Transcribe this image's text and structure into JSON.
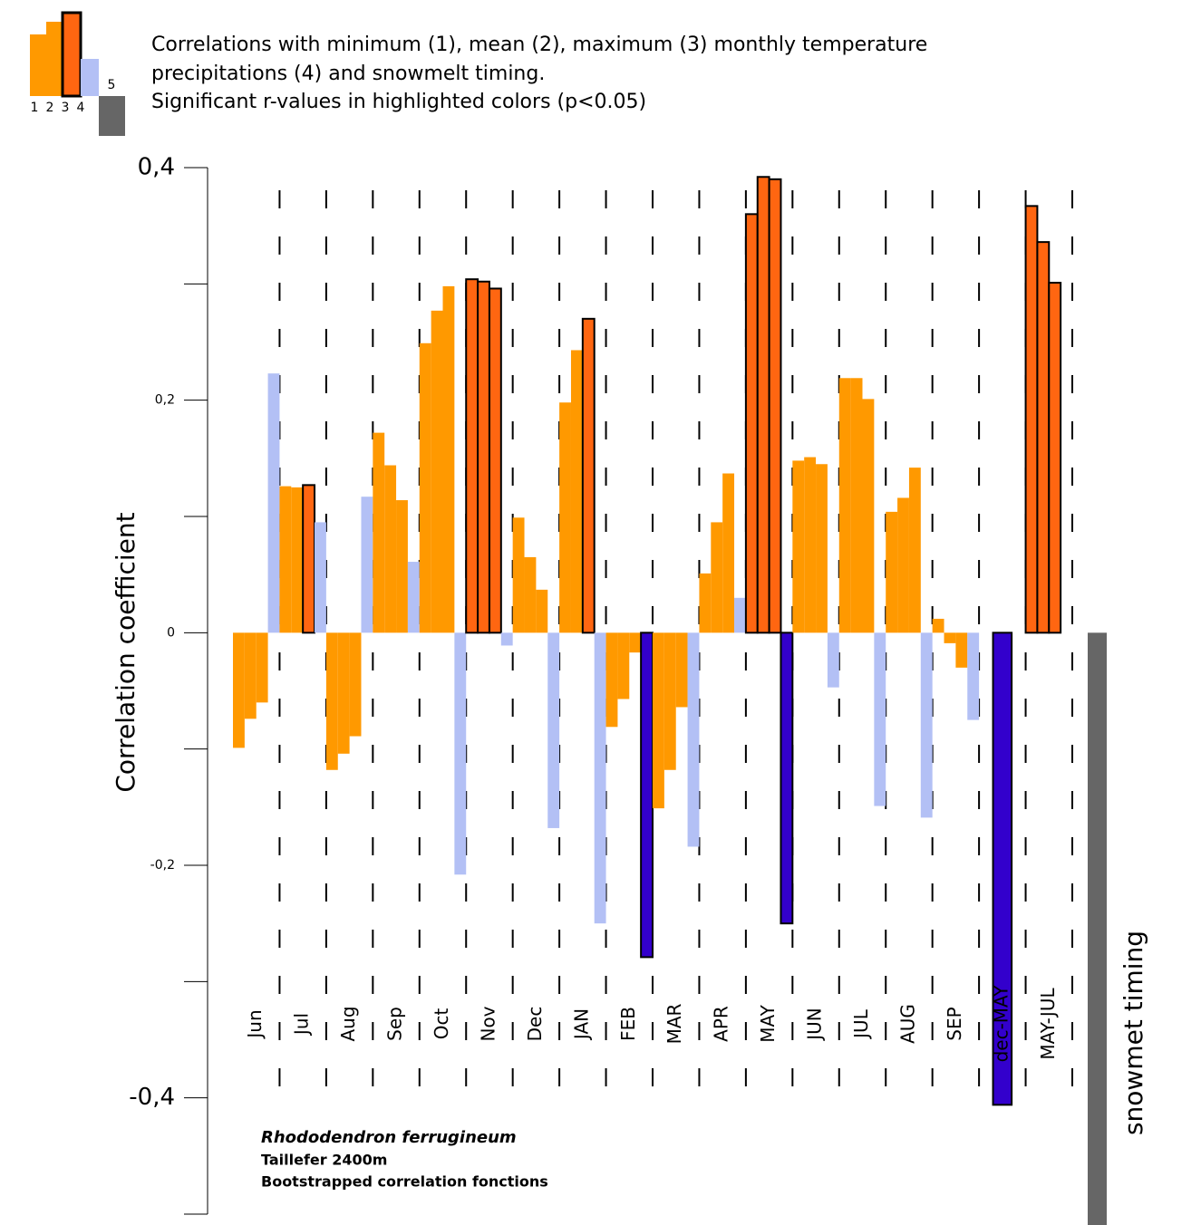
{
  "chart_data": {
    "type": "bar",
    "title_lines": [
      "Correlations with minimum (1), mean (2), maximum (3) monthly temperature",
      "precipitations (4) and snowmelt timing.",
      "Significant r-values in highlighted colors (p<0.05)"
    ],
    "y_label": "Correlation coefficient",
    "annotation_lines": [
      "Rhododendron ferrugineum",
      "Taillefer 2400m",
      "Bootstrapped correlation fonctions"
    ],
    "categories": [
      "Jun",
      "Jul",
      "Aug",
      "Sep",
      "Oct",
      "Nov",
      "Dec",
      "JAN",
      "FEB",
      "MAR",
      "APR",
      "MAY",
      "JUN",
      "JUL",
      "AUG",
      "SEP",
      "dec-MAY",
      "MAY-JUL"
    ],
    "series": [
      {
        "name": "1",
        "color": "#ff9900",
        "highlight_color": "#ff6611",
        "values": [
          -0.099,
          0.126,
          -0.118,
          0.172,
          0.249,
          0.304,
          0.099,
          0.198,
          -0.081,
          -0.151,
          0.051,
          0.36,
          0.148,
          0.219,
          0.104,
          0.012,
          null,
          0.367
        ],
        "significant": [
          false,
          false,
          false,
          false,
          false,
          true,
          false,
          false,
          false,
          false,
          false,
          true,
          false,
          false,
          false,
          false,
          false,
          true
        ]
      },
      {
        "name": "2",
        "color": "#ff9900",
        "highlight_color": "#ff6611",
        "values": [
          -0.074,
          0.125,
          -0.104,
          0.144,
          0.277,
          0.302,
          0.065,
          0.243,
          -0.057,
          -0.118,
          0.095,
          0.392,
          0.151,
          0.219,
          0.116,
          -0.009,
          null,
          0.336
        ],
        "significant": [
          false,
          false,
          false,
          false,
          false,
          true,
          false,
          false,
          false,
          false,
          false,
          true,
          false,
          false,
          false,
          false,
          false,
          true
        ]
      },
      {
        "name": "3",
        "color": "#ff9900",
        "highlight_color": "#ff6611",
        "values": [
          -0.06,
          0.127,
          -0.089,
          0.114,
          0.298,
          0.296,
          0.037,
          0.27,
          -0.017,
          -0.064,
          0.137,
          0.39,
          0.145,
          0.201,
          0.142,
          -0.03,
          null,
          0.301
        ],
        "significant": [
          false,
          true,
          false,
          false,
          false,
          true,
          false,
          true,
          false,
          false,
          false,
          true,
          false,
          false,
          false,
          false,
          false,
          true
        ]
      },
      {
        "name": "4",
        "color": "#b3c0f5",
        "highlight_color": "#3300cc",
        "values": [
          0.223,
          0.095,
          0.117,
          0.061,
          -0.208,
          -0.011,
          -0.168,
          -0.25,
          -0.279,
          -0.184,
          0.03,
          -0.25,
          -0.047,
          -0.149,
          -0.159,
          -0.075,
          -0.406,
          null
        ],
        "significant": [
          false,
          false,
          false,
          false,
          false,
          false,
          false,
          false,
          true,
          false,
          false,
          true,
          false,
          false,
          false,
          false,
          true,
          false
        ]
      }
    ],
    "snowmelt": {
      "name": "5",
      "label": "snowmet timing",
      "value": -0.51,
      "color": "#666666"
    },
    "ylim": [
      -0.5,
      0.4
    ],
    "yticks": [
      {
        "value": 0.4,
        "label": "0,4"
      },
      {
        "value": 0.2,
        "label": "0,2"
      },
      0,
      {
        "value": -0.2,
        "label": "-0,2"
      },
      {
        "value": -0.4,
        "label": "-0,4"
      }
    ],
    "minor_yticks": [
      0.3,
      0.1,
      -0.1,
      -0.3,
      -0.5
    ],
    "grid": false
  }
}
